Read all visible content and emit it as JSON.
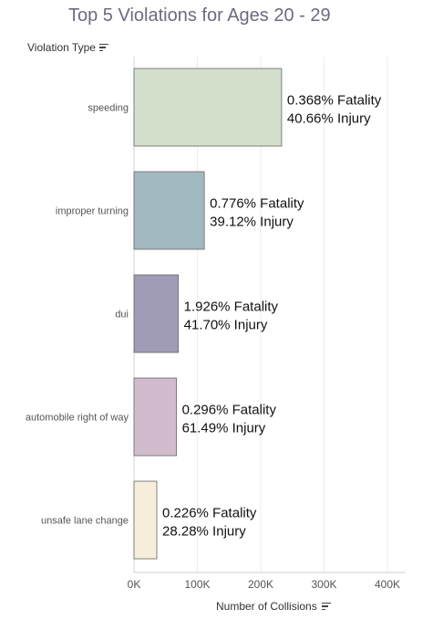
{
  "title": "Top 5 Violations for Ages 20 - 29",
  "dimension_header": "Violation Type",
  "dimension_sort_icon": "sort-descending-icon",
  "axis_title": "Number of Collisions",
  "axis_sort_icon": "sort-descending-icon",
  "chart_data": {
    "type": "bar",
    "orientation": "horizontal",
    "title": "Top 5 Violations for Ages 20 - 29",
    "ylabel": "Violation Type",
    "xlabel": "Number of Collisions",
    "categories": [
      "speeding",
      "improper turning",
      "dui",
      "automobile right of way",
      "unsafe lane change"
    ],
    "values": [
      233000,
      111000,
      70000,
      67000,
      36000
    ],
    "colors": [
      "#d3dfcb",
      "#a3b9c1",
      "#a09bb6",
      "#d1bccd",
      "#f6eddb"
    ],
    "labels": [
      [
        "0.368% Fatality",
        "40.66% Injury"
      ],
      [
        "0.776% Fatality",
        "39.12% Injury"
      ],
      [
        "1.926% Fatality",
        "41.70% Injury"
      ],
      [
        "0.296% Fatality",
        "61.49% Injury"
      ],
      [
        "0.226% Fatality",
        "28.28% Injury"
      ]
    ],
    "xticks": [
      0,
      100000,
      200000,
      300000,
      400000
    ],
    "xtick_labels": [
      "0K",
      "100K",
      "200K",
      "300K",
      "400K"
    ],
    "xlim": [
      0,
      420000
    ],
    "grid": true,
    "legend": "none"
  }
}
